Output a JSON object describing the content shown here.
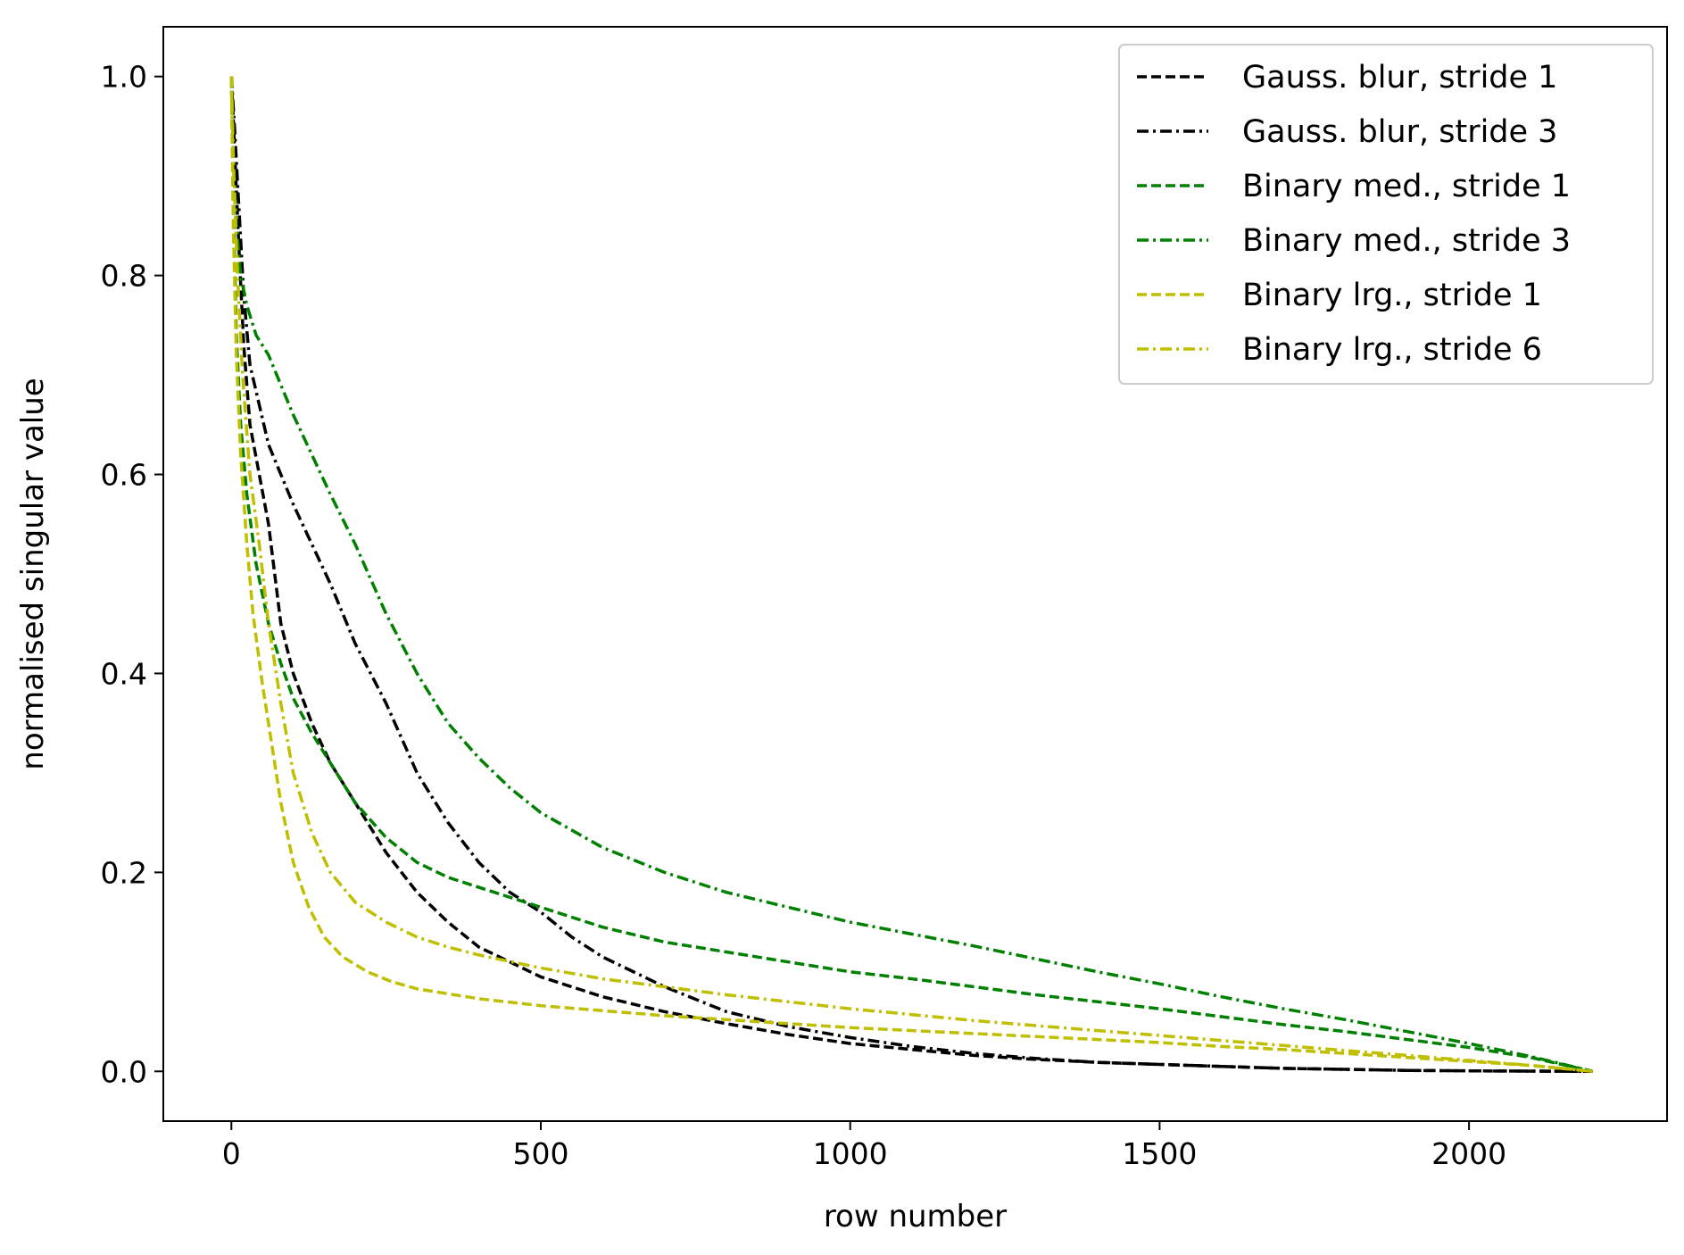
{
  "chart_data": {
    "type": "line",
    "title": "",
    "xlabel": "row number",
    "ylabel": "normalised singular value",
    "xlim": [
      -110,
      2320
    ],
    "ylim": [
      -0.05,
      1.05
    ],
    "xticks": [
      0,
      500,
      1000,
      1500,
      2000
    ],
    "xtick_labels": [
      "0",
      "500",
      "1000",
      "1500",
      "2000"
    ],
    "yticks": [
      0.0,
      0.2,
      0.4,
      0.6,
      0.8,
      1.0
    ],
    "ytick_labels": [
      "0.0",
      "0.2",
      "0.4",
      "0.6",
      "0.8",
      "1.0"
    ],
    "grid": false,
    "legend_position": "top-right",
    "series": [
      {
        "name": "Gauss. blur, stride 1",
        "color": "#000000",
        "style": "dashed",
        "x": [
          0,
          5,
          12,
          20,
          30,
          45,
          60,
          80,
          100,
          130,
          160,
          200,
          250,
          300,
          350,
          400,
          450,
          500,
          600,
          700,
          800,
          900,
          1000,
          1100,
          1200,
          1300,
          1400,
          1500,
          1600,
          1700,
          1800,
          1900,
          2000,
          2100,
          2200
        ],
        "y": [
          1.0,
          0.93,
          0.83,
          0.73,
          0.65,
          0.6,
          0.55,
          0.45,
          0.4,
          0.35,
          0.31,
          0.27,
          0.22,
          0.18,
          0.15,
          0.125,
          0.11,
          0.095,
          0.075,
          0.06,
          0.048,
          0.037,
          0.028,
          0.022,
          0.016,
          0.012,
          0.009,
          0.007,
          0.005,
          0.003,
          0.002,
          0.001,
          0.0005,
          0.0002,
          0.0
        ]
      },
      {
        "name": "Gauss. blur, stride 3",
        "color": "#000000",
        "style": "dashdot",
        "x": [
          0,
          5,
          12,
          20,
          30,
          45,
          60,
          80,
          100,
          130,
          160,
          200,
          250,
          300,
          350,
          400,
          450,
          500,
          550,
          600,
          700,
          800,
          900,
          1000,
          1100,
          1200,
          1300,
          1400,
          1500,
          1600,
          1700,
          1800,
          1900,
          2000,
          2100,
          2200
        ],
        "y": [
          1.0,
          0.95,
          0.87,
          0.78,
          0.71,
          0.67,
          0.63,
          0.6,
          0.57,
          0.53,
          0.49,
          0.43,
          0.37,
          0.3,
          0.25,
          0.21,
          0.18,
          0.16,
          0.135,
          0.115,
          0.085,
          0.06,
          0.045,
          0.034,
          0.025,
          0.018,
          0.013,
          0.009,
          0.007,
          0.005,
          0.003,
          0.002,
          0.001,
          0.0005,
          0.0002,
          0.0
        ]
      },
      {
        "name": "Binary med., stride 1",
        "color": "#008000",
        "style": "dashed",
        "x": [
          0,
          3,
          8,
          15,
          25,
          40,
          60,
          80,
          100,
          130,
          160,
          200,
          250,
          300,
          350,
          400,
          500,
          600,
          700,
          800,
          900,
          1000,
          1100,
          1200,
          1300,
          1400,
          1500,
          1600,
          1700,
          1800,
          1900,
          2000,
          2100,
          2200
        ],
        "y": [
          1.0,
          0.88,
          0.74,
          0.65,
          0.58,
          0.51,
          0.45,
          0.41,
          0.375,
          0.34,
          0.31,
          0.27,
          0.235,
          0.21,
          0.195,
          0.185,
          0.165,
          0.145,
          0.13,
          0.12,
          0.11,
          0.1,
          0.093,
          0.085,
          0.077,
          0.07,
          0.063,
          0.055,
          0.047,
          0.04,
          0.032,
          0.024,
          0.014,
          0.0
        ]
      },
      {
        "name": "Binary med., stride 3",
        "color": "#008000",
        "style": "dashdot",
        "x": [
          0,
          3,
          8,
          15,
          25,
          40,
          60,
          80,
          100,
          130,
          160,
          200,
          250,
          300,
          350,
          400,
          450,
          500,
          600,
          700,
          800,
          900,
          1000,
          1100,
          1200,
          1300,
          1400,
          1500,
          1600,
          1700,
          1800,
          1900,
          2000,
          2100,
          2200
        ],
        "y": [
          1.0,
          0.92,
          0.85,
          0.8,
          0.77,
          0.74,
          0.72,
          0.69,
          0.66,
          0.62,
          0.58,
          0.53,
          0.46,
          0.4,
          0.35,
          0.315,
          0.285,
          0.26,
          0.225,
          0.2,
          0.18,
          0.165,
          0.15,
          0.138,
          0.126,
          0.113,
          0.1,
          0.088,
          0.075,
          0.063,
          0.052,
          0.04,
          0.028,
          0.015,
          0.0
        ]
      },
      {
        "name": "Binary lrg., stride 1",
        "color": "#bfbf00",
        "style": "dashed",
        "x": [
          0,
          3,
          8,
          15,
          25,
          35,
          50,
          65,
          80,
          100,
          125,
          150,
          180,
          220,
          260,
          300,
          400,
          500,
          600,
          700,
          800,
          900,
          1000,
          1100,
          1200,
          1300,
          1400,
          1500,
          1600,
          1700,
          1800,
          1900,
          2000,
          2100,
          2200
        ],
        "y": [
          1.0,
          0.85,
          0.72,
          0.62,
          0.53,
          0.46,
          0.39,
          0.33,
          0.27,
          0.21,
          0.165,
          0.135,
          0.115,
          0.1,
          0.09,
          0.083,
          0.073,
          0.066,
          0.061,
          0.056,
          0.052,
          0.048,
          0.044,
          0.041,
          0.038,
          0.035,
          0.032,
          0.029,
          0.025,
          0.022,
          0.018,
          0.014,
          0.01,
          0.006,
          0.0
        ]
      },
      {
        "name": "Binary lrg., stride 6",
        "color": "#bfbf00",
        "style": "dashdot",
        "x": [
          0,
          4,
          10,
          18,
          30,
          45,
          60,
          80,
          100,
          130,
          160,
          200,
          250,
          300,
          350,
          400,
          500,
          600,
          700,
          800,
          900,
          1000,
          1100,
          1200,
          1300,
          1400,
          1500,
          1600,
          1700,
          1800,
          1900,
          2000,
          2100,
          2200
        ],
        "y": [
          1.0,
          0.9,
          0.8,
          0.7,
          0.6,
          0.53,
          0.45,
          0.37,
          0.3,
          0.24,
          0.2,
          0.17,
          0.15,
          0.135,
          0.125,
          0.117,
          0.104,
          0.093,
          0.085,
          0.077,
          0.07,
          0.063,
          0.057,
          0.051,
          0.046,
          0.041,
          0.036,
          0.031,
          0.026,
          0.021,
          0.016,
          0.011,
          0.006,
          0.0
        ]
      }
    ]
  }
}
